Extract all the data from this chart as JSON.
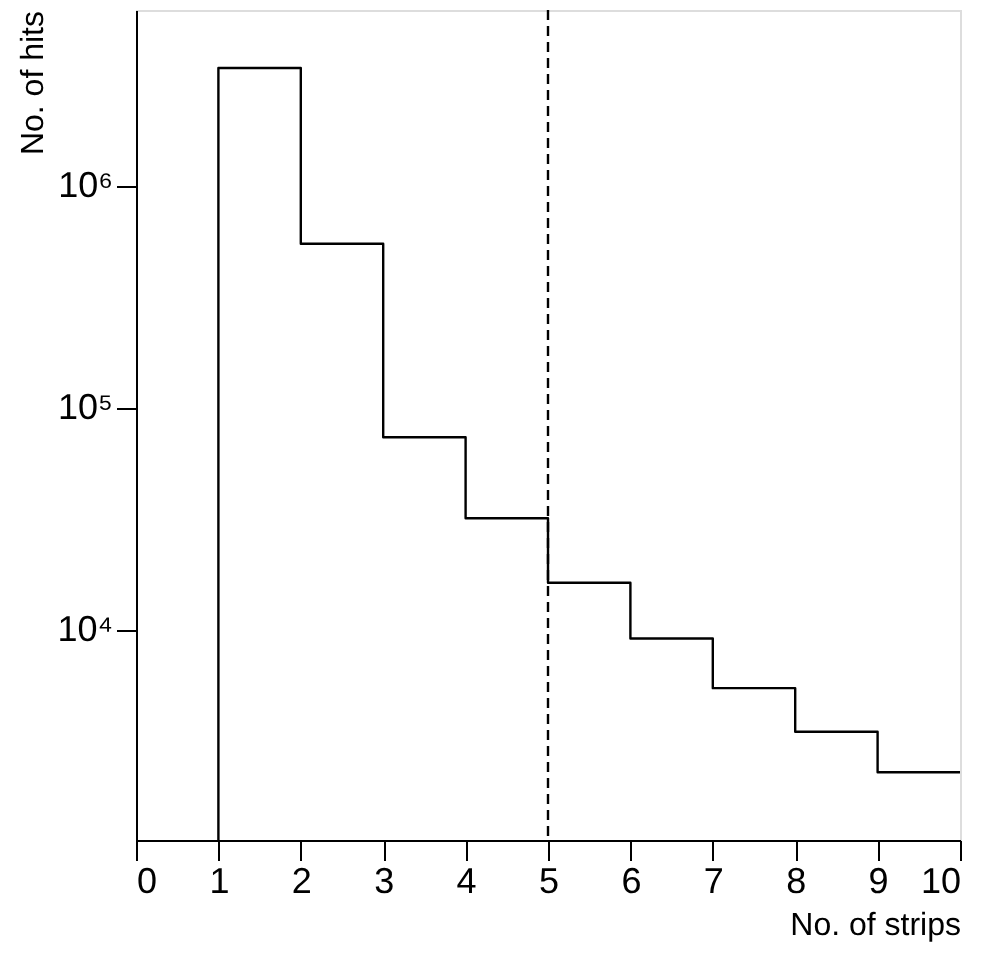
{
  "chart_data": {
    "type": "histogram",
    "xlabel": "No. of strips",
    "ylabel": "No. of hits",
    "bins": [
      1,
      2,
      3,
      4,
      5,
      6,
      7,
      8,
      9,
      10
    ],
    "values": [
      3400000,
      550000,
      74000,
      32000,
      16400,
      9200,
      5500,
      3500,
      2300
    ],
    "color": "#000000",
    "log": "y",
    "xlim": [
      0,
      10
    ],
    "xticks": [
      0,
      1,
      2,
      3,
      4,
      5,
      6,
      7,
      8,
      9,
      10
    ],
    "ylim": [
      1140,
      6200000
    ],
    "yticks": [
      {
        "value": 10000,
        "label": "10⁴"
      },
      {
        "value": 100000,
        "label": "10⁵"
      },
      {
        "value": 1000000,
        "label": "10⁶"
      }
    ],
    "ref_lines": [
      {
        "axis": "x",
        "value": 5,
        "line_style": "dashed"
      }
    ],
    "grid": false
  }
}
